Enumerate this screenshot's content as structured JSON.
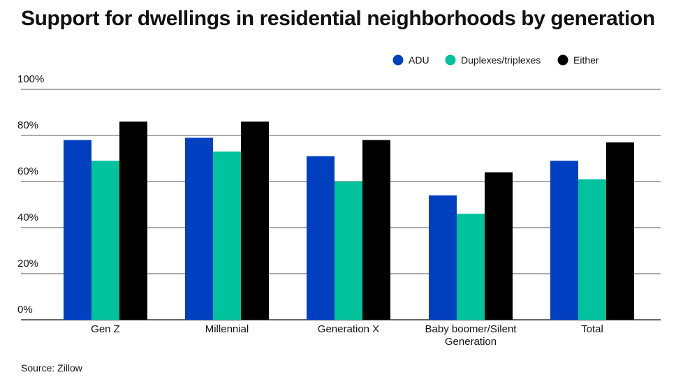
{
  "chart_data": {
    "type": "bar",
    "title": "Support for dwellings in residential neighborhoods by generation",
    "source": "Source: Zillow",
    "xlabel": "",
    "ylabel": "",
    "ylim": [
      0,
      100
    ],
    "yticks": [
      {
        "value": 0,
        "label": "0%"
      },
      {
        "value": 20,
        "label": "20%"
      },
      {
        "value": 40,
        "label": "40%"
      },
      {
        "value": 60,
        "label": "60%"
      },
      {
        "value": 80,
        "label": "80%"
      },
      {
        "value": 100,
        "label": "100%"
      }
    ],
    "categories": [
      "Gen Z",
      "Millennial",
      "Generation X",
      "Baby boomer/Silent Generation",
      "Total"
    ],
    "category_lines": [
      [
        "Gen Z"
      ],
      [
        "Millennial"
      ],
      [
        "Generation X"
      ],
      [
        "Baby boomer/Silent",
        "Generation"
      ],
      [
        "Total"
      ]
    ],
    "series": [
      {
        "name": "ADU",
        "color": "#0040c0",
        "values": [
          78,
          79,
          71,
          54,
          69
        ]
      },
      {
        "name": "Duplexes/triplexes",
        "color": "#00c29d",
        "values": [
          69,
          73,
          60,
          46,
          61
        ]
      },
      {
        "name": "Either",
        "color": "#000000",
        "values": [
          86,
          86,
          78,
          64,
          77
        ]
      }
    ],
    "legend_position": "top-right",
    "grid": true
  }
}
